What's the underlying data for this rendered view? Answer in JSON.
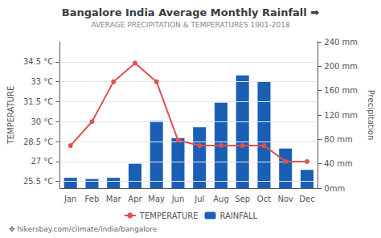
{
  "chart_data": {
    "type": "bar",
    "title": "Bangalore India Average Monthly Rainfall ➡",
    "subtitle": "AVERAGE PRECIPITATION & TEMPERATURES 1901-2018",
    "annotations": [
      "✥ hikersbay.com/climate/india/bangalore"
    ],
    "categories": [
      "Jan",
      "Feb",
      "Mar",
      "Apr",
      "May",
      "Jun",
      "Jul",
      "Aug",
      "Sep",
      "Oct",
      "Nov",
      "Dec"
    ],
    "series": [
      {
        "name": "TEMPERATURE",
        "type": "line",
        "marker": "circle",
        "color": "#e05050",
        "axis": "y",
        "values": [
          28.2,
          30.0,
          33.0,
          34.4,
          33.0,
          28.6,
          28.2,
          28.2,
          28.2,
          28.2,
          27.0,
          27.0
        ]
      },
      {
        "name": "RAINFALL",
        "type": "bar",
        "color": "#1a5fb4",
        "axis": "y2",
        "values": [
          17,
          15,
          17,
          40,
          110,
          82,
          100,
          140,
          185,
          175,
          65,
          30
        ]
      }
    ],
    "ylabel": "TEMPERATURE",
    "y2label": "Precipitation",
    "ylim": [
      25.0,
      36.0
    ],
    "yticks": [
      {
        "value": 25.5,
        "label": "25.5 °C"
      },
      {
        "value": 27.0,
        "label": "27 °C"
      },
      {
        "value": 28.5,
        "label": "28.5 °C"
      },
      {
        "value": 30.0,
        "label": "30 °C"
      },
      {
        "value": 31.5,
        "label": "31.5 °C"
      },
      {
        "value": 33.0,
        "label": "33 °C"
      },
      {
        "value": 34.5,
        "label": "34.5 °C"
      }
    ],
    "y2lim": [
      0,
      240
    ],
    "y2ticks": [
      {
        "value": 0,
        "label": "0mm"
      },
      {
        "value": 40,
        "label": "40 mm"
      },
      {
        "value": 80,
        "label": "80 mm"
      },
      {
        "value": 120,
        "label": "120 mm"
      },
      {
        "value": 160,
        "label": "160 mm"
      },
      {
        "value": 200,
        "label": "200 mm"
      },
      {
        "value": 240,
        "label": "240 mm"
      }
    ],
    "grid": true,
    "legend": "bottom"
  }
}
